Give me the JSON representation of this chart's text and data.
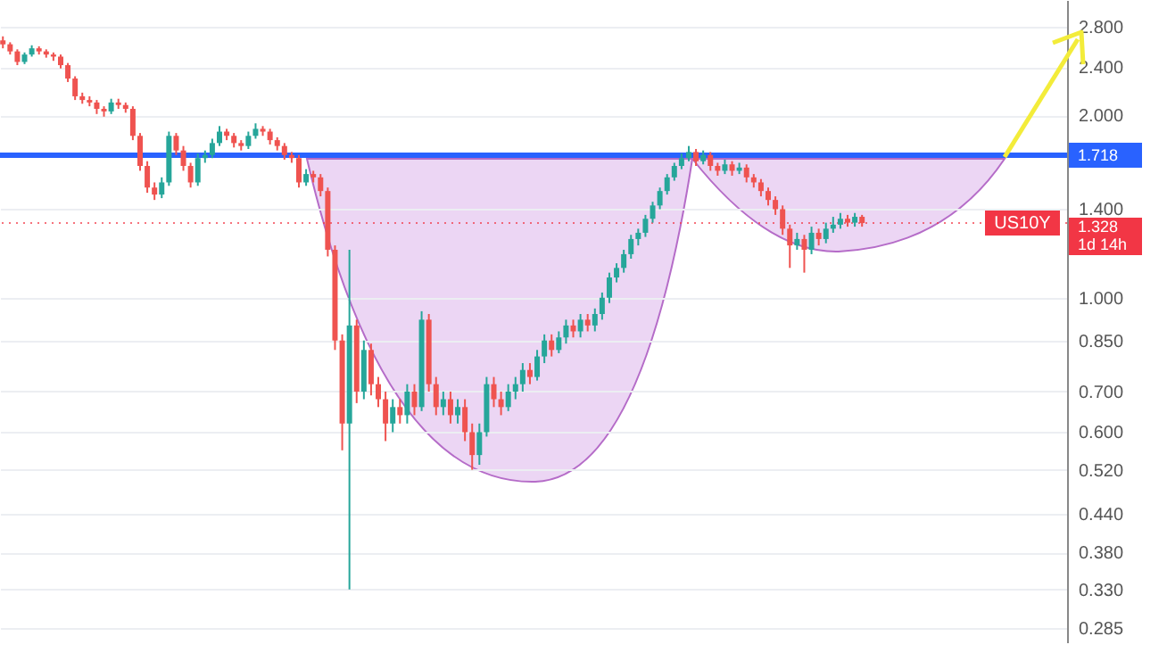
{
  "chart_data": {
    "type": "candlestick",
    "categories": [
      null,
      null,
      null,
      null,
      null,
      null,
      null,
      null,
      null,
      null,
      null,
      null,
      null,
      null,
      null,
      null,
      null,
      null,
      null,
      null,
      null,
      null,
      null,
      null,
      null,
      null,
      null,
      null,
      null,
      null,
      null,
      null,
      null,
      null,
      null,
      null,
      null,
      null,
      null,
      null,
      null,
      null,
      null,
      null,
      null,
      null,
      null,
      null,
      null,
      null,
      null,
      null,
      null,
      null,
      null,
      null,
      null,
      null,
      null,
      null,
      null,
      null,
      null,
      null,
      null,
      null,
      null,
      null,
      null,
      null,
      null,
      null,
      null,
      null,
      null,
      null,
      null,
      null,
      null,
      null,
      null,
      null,
      null,
      null,
      null,
      null,
      null,
      null,
      null,
      null,
      null,
      null,
      null,
      null,
      null,
      null,
      null,
      null,
      null,
      null,
      null,
      null,
      null,
      null,
      null,
      null,
      null,
      null,
      null,
      null,
      null,
      null,
      null,
      null,
      null,
      null,
      null,
      null,
      null,
      null,
      null,
      null,
      null,
      null,
      null,
      null,
      null,
      null,
      null,
      null,
      null,
      null,
      null,
      null,
      null,
      null,
      null,
      null,
      null,
      null,
      null,
      null,
      null,
      null,
      null,
      null,
      null,
      null
    ],
    "ohlc": [
      [
        2.66,
        2.7,
        2.58,
        2.62
      ],
      [
        2.62,
        2.64,
        2.52,
        2.55
      ],
      [
        2.55,
        2.57,
        2.42,
        2.45
      ],
      [
        2.45,
        2.54,
        2.43,
        2.52
      ],
      [
        2.52,
        2.61,
        2.5,
        2.58
      ],
      [
        2.58,
        2.6,
        2.52,
        2.55
      ],
      [
        2.55,
        2.57,
        2.49,
        2.52
      ],
      [
        2.52,
        2.54,
        2.46,
        2.5
      ],
      [
        2.5,
        2.52,
        2.39,
        2.42
      ],
      [
        2.42,
        2.44,
        2.27,
        2.3
      ],
      [
        2.3,
        2.32,
        2.12,
        2.15
      ],
      [
        2.15,
        2.18,
        2.09,
        2.12
      ],
      [
        2.12,
        2.15,
        2.07,
        2.1
      ],
      [
        2.1,
        2.12,
        2.01,
        2.05
      ],
      [
        2.05,
        2.07,
        1.99,
        2.03
      ],
      [
        2.03,
        2.13,
        2.01,
        2.1
      ],
      [
        2.1,
        2.13,
        2.05,
        2.08
      ],
      [
        2.08,
        2.1,
        2.02,
        2.05
      ],
      [
        2.05,
        2.07,
        1.82,
        1.85
      ],
      [
        1.85,
        1.87,
        1.62,
        1.65
      ],
      [
        1.65,
        1.68,
        1.49,
        1.52
      ],
      [
        1.52,
        1.55,
        1.45,
        1.48
      ],
      [
        1.48,
        1.58,
        1.46,
        1.55
      ],
      [
        1.55,
        1.88,
        1.53,
        1.85
      ],
      [
        1.85,
        1.87,
        1.72,
        1.75
      ],
      [
        1.75,
        1.78,
        1.62,
        1.65
      ],
      [
        1.65,
        1.67,
        1.52,
        1.55
      ],
      [
        1.55,
        1.73,
        1.53,
        1.7
      ],
      [
        1.7,
        1.75,
        1.67,
        1.72
      ],
      [
        1.72,
        1.83,
        1.7,
        1.8
      ],
      [
        1.8,
        1.92,
        1.78,
        1.88
      ],
      [
        1.88,
        1.9,
        1.82,
        1.85
      ],
      [
        1.85,
        1.87,
        1.77,
        1.8
      ],
      [
        1.8,
        1.82,
        1.75,
        1.78
      ],
      [
        1.78,
        1.88,
        1.76,
        1.85
      ],
      [
        1.85,
        1.94,
        1.83,
        1.9
      ],
      [
        1.9,
        1.92,
        1.85,
        1.88
      ],
      [
        1.88,
        1.9,
        1.79,
        1.82
      ],
      [
        1.82,
        1.84,
        1.75,
        1.78
      ],
      [
        1.78,
        1.8,
        1.69,
        1.72
      ],
      [
        1.72,
        1.74,
        1.67,
        1.7
      ],
      [
        1.7,
        1.72,
        1.52,
        1.55
      ],
      [
        1.55,
        1.63,
        1.53,
        1.6
      ],
      [
        1.6,
        1.62,
        1.55,
        1.58
      ],
      [
        1.58,
        1.6,
        1.47,
        1.5
      ],
      [
        1.5,
        1.52,
        1.17,
        1.2
      ],
      [
        1.2,
        1.22,
        0.82,
        0.85
      ],
      [
        0.85,
        0.87,
        0.56,
        0.62
      ],
      [
        0.62,
        1.2,
        0.33,
        0.9
      ],
      [
        0.9,
        0.92,
        0.67,
        0.7
      ],
      [
        0.7,
        0.85,
        0.68,
        0.82
      ],
      [
        0.82,
        0.84,
        0.69,
        0.72
      ],
      [
        0.72,
        0.74,
        0.66,
        0.68
      ],
      [
        0.68,
        0.7,
        0.58,
        0.62
      ],
      [
        0.62,
        0.68,
        0.6,
        0.66
      ],
      [
        0.66,
        0.68,
        0.62,
        0.64
      ],
      [
        0.64,
        0.72,
        0.62,
        0.7
      ],
      [
        0.7,
        0.72,
        0.64,
        0.66
      ],
      [
        0.66,
        0.95,
        0.65,
        0.92
      ],
      [
        0.92,
        0.94,
        0.7,
        0.72
      ],
      [
        0.72,
        0.74,
        0.64,
        0.66
      ],
      [
        0.66,
        0.7,
        0.64,
        0.68
      ],
      [
        0.68,
        0.7,
        0.62,
        0.64
      ],
      [
        0.64,
        0.68,
        0.62,
        0.66
      ],
      [
        0.66,
        0.68,
        0.58,
        0.6
      ],
      [
        0.6,
        0.62,
        0.52,
        0.55
      ],
      [
        0.55,
        0.62,
        0.53,
        0.6
      ],
      [
        0.6,
        0.74,
        0.59,
        0.72
      ],
      [
        0.72,
        0.74,
        0.66,
        0.68
      ],
      [
        0.68,
        0.7,
        0.64,
        0.66
      ],
      [
        0.66,
        0.72,
        0.65,
        0.7
      ],
      [
        0.7,
        0.74,
        0.68,
        0.72
      ],
      [
        0.72,
        0.78,
        0.7,
        0.76
      ],
      [
        0.76,
        0.78,
        0.72,
        0.74
      ],
      [
        0.74,
        0.82,
        0.73,
        0.8
      ],
      [
        0.8,
        0.87,
        0.78,
        0.85
      ],
      [
        0.85,
        0.87,
        0.8,
        0.82
      ],
      [
        0.82,
        0.88,
        0.81,
        0.86
      ],
      [
        0.86,
        0.92,
        0.84,
        0.9
      ],
      [
        0.9,
        0.92,
        0.86,
        0.88
      ],
      [
        0.88,
        0.94,
        0.86,
        0.92
      ],
      [
        0.92,
        0.94,
        0.88,
        0.9
      ],
      [
        0.9,
        0.96,
        0.88,
        0.94
      ],
      [
        0.94,
        1.02,
        0.92,
        1.0
      ],
      [
        1.0,
        1.1,
        0.98,
        1.08
      ],
      [
        1.08,
        1.14,
        1.06,
        1.12
      ],
      [
        1.12,
        1.2,
        1.1,
        1.18
      ],
      [
        1.18,
        1.27,
        1.16,
        1.25
      ],
      [
        1.25,
        1.3,
        1.22,
        1.28
      ],
      [
        1.28,
        1.37,
        1.26,
        1.35
      ],
      [
        1.35,
        1.44,
        1.33,
        1.42
      ],
      [
        1.42,
        1.52,
        1.4,
        1.5
      ],
      [
        1.5,
        1.6,
        1.48,
        1.58
      ],
      [
        1.58,
        1.67,
        1.56,
        1.65
      ],
      [
        1.65,
        1.73,
        1.63,
        1.7
      ],
      [
        1.7,
        1.78,
        1.68,
        1.74
      ],
      [
        1.74,
        1.76,
        1.65,
        1.68
      ],
      [
        1.68,
        1.75,
        1.66,
        1.72
      ],
      [
        1.72,
        1.74,
        1.62,
        1.65
      ],
      [
        1.65,
        1.67,
        1.59,
        1.62
      ],
      [
        1.62,
        1.69,
        1.6,
        1.66
      ],
      [
        1.66,
        1.68,
        1.59,
        1.62
      ],
      [
        1.62,
        1.67,
        1.6,
        1.64
      ],
      [
        1.64,
        1.66,
        1.55,
        1.58
      ],
      [
        1.58,
        1.6,
        1.52,
        1.55
      ],
      [
        1.55,
        1.57,
        1.47,
        1.5
      ],
      [
        1.5,
        1.52,
        1.42,
        1.45
      ],
      [
        1.45,
        1.47,
        1.37,
        1.4
      ],
      [
        1.4,
        1.42,
        1.27,
        1.3
      ],
      [
        1.3,
        1.32,
        1.12,
        1.22
      ],
      [
        1.22,
        1.28,
        1.2,
        1.25
      ],
      [
        1.25,
        1.27,
        1.1,
        1.2
      ],
      [
        1.2,
        1.31,
        1.18,
        1.28
      ],
      [
        1.28,
        1.3,
        1.22,
        1.25
      ],
      [
        1.25,
        1.33,
        1.23,
        1.3
      ],
      [
        1.3,
        1.36,
        1.28,
        1.32
      ],
      [
        1.32,
        1.38,
        1.3,
        1.35
      ],
      [
        1.35,
        1.37,
        1.31,
        1.33
      ],
      [
        1.33,
        1.38,
        1.31,
        1.36
      ],
      [
        1.36,
        1.37,
        1.31,
        1.328
      ],
      null,
      null,
      null,
      null,
      null,
      null,
      null,
      null,
      null,
      null,
      null,
      null,
      null,
      null,
      null,
      null,
      null,
      null,
      null,
      null,
      null,
      null,
      null,
      null,
      null,
      null,
      null,
      null
    ],
    "log": "y",
    "ylim": [
      0.27,
      3.1
    ],
    "yticks": [
      {
        "value": 0.285,
        "label": "0.285"
      },
      {
        "value": 0.33,
        "label": "0.330"
      },
      {
        "value": 0.38,
        "label": "0.380"
      },
      {
        "value": 0.44,
        "label": "0.440"
      },
      {
        "value": 0.52,
        "label": "0.520"
      },
      {
        "value": 0.6,
        "label": "0.600"
      },
      {
        "value": 0.7,
        "label": "0.700"
      },
      {
        "value": 0.85,
        "label": "0.850"
      },
      {
        "value": 1,
        "label": "1.000"
      },
      {
        "value": 1.4,
        "label": "1.400"
      },
      {
        "value": 2,
        "label": "2.000"
      },
      {
        "value": 2.4,
        "label": "2.400"
      },
      {
        "value": 2.8,
        "label": "2.800"
      }
    ],
    "grid": "y",
    "tick_labels": "y",
    "ref_lines": [
      {
        "axis": "y",
        "value": 1.718,
        "label": "1.718",
        "color": "#2962ff",
        "line_style": "solid"
      },
      {
        "axis": "y",
        "value": 1.328,
        "label": "1.328",
        "color": "#f23645",
        "line_style": "dotted"
      }
    ],
    "annotations": [
      "US10Y",
      "1d 14h"
    ]
  }
}
